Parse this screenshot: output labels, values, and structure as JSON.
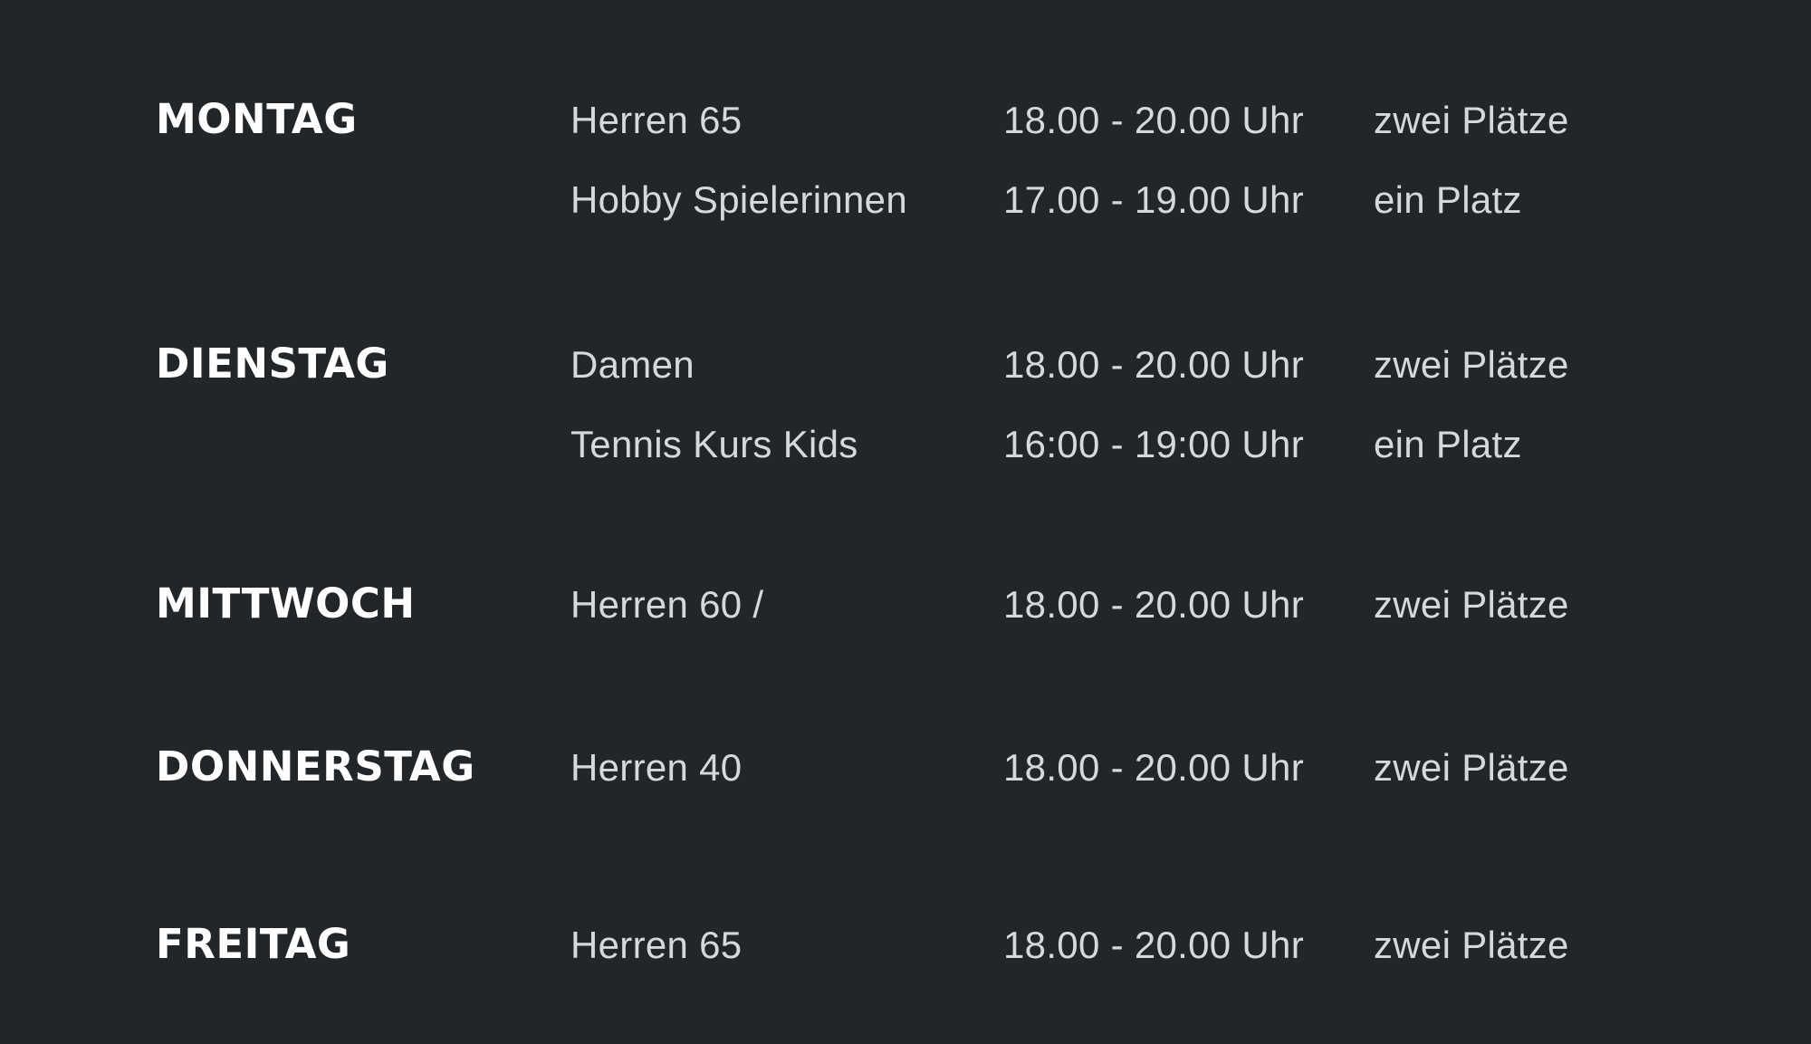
{
  "page": {
    "background_color": "#232629",
    "day_label_color": "#ffffff",
    "body_text_color": "#d7d8da"
  },
  "schedule": {
    "days": [
      {
        "label": "MONTAG",
        "entries": [
          {
            "group": "Herren 65",
            "time": "18.00 - 20.00 Uhr",
            "courts": "zwei Plätze"
          },
          {
            "group": "Hobby Spielerinnen",
            "time": "17.00 - 19.00 Uhr",
            "courts": "ein Platz"
          }
        ]
      },
      {
        "label": "DIENSTAG",
        "entries": [
          {
            "group": "Damen",
            "time": "18.00 - 20.00 Uhr",
            "courts": "zwei Plätze"
          },
          {
            "group": "Tennis Kurs Kids",
            "time": "16:00 - 19:00 Uhr",
            "courts": "ein Platz"
          }
        ]
      },
      {
        "label": "MITTWOCH",
        "entries": [
          {
            "group": "Herren 60 /",
            "time": "18.00 - 20.00 Uhr",
            "courts": "zwei Plätze"
          }
        ]
      },
      {
        "label": "DONNERSTAG",
        "entries": [
          {
            "group": "Herren 40",
            "time": "18.00 - 20.00 Uhr",
            "courts": "zwei Plätze"
          }
        ]
      },
      {
        "label": "FREITAG",
        "entries": [
          {
            "group": "Herren 65",
            "time": "18.00 - 20.00 Uhr",
            "courts": "zwei Plätze"
          }
        ]
      }
    ]
  }
}
